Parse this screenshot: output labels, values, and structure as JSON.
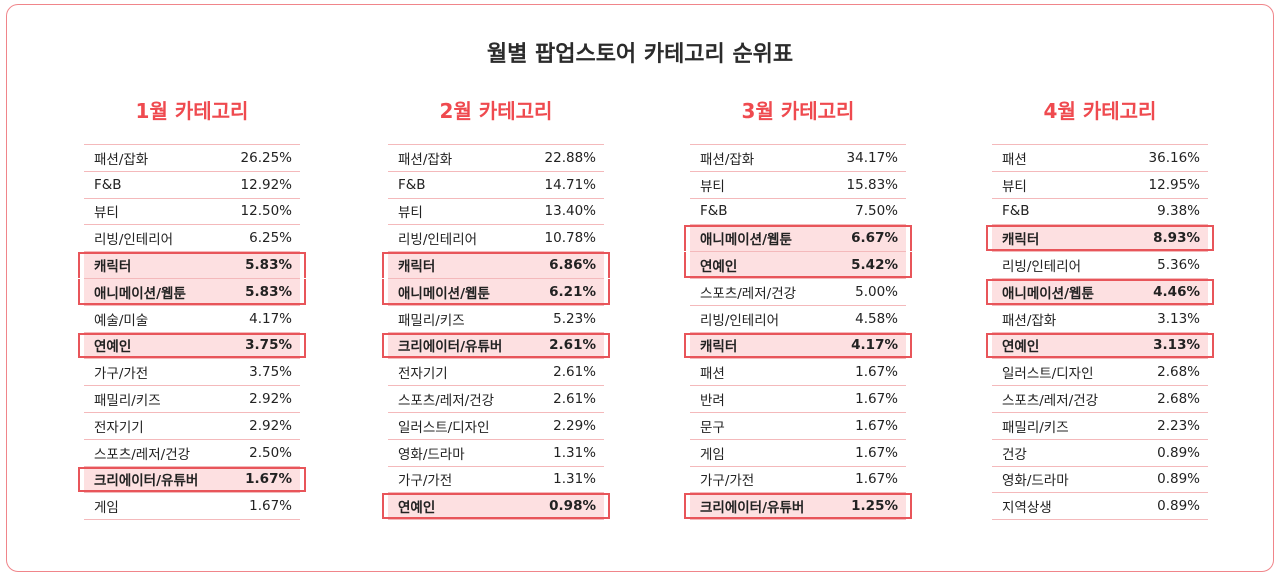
{
  "title": "월별 팝업스토어 카테고리 순위표",
  "columns": [
    {
      "title": "1월 카테고리",
      "rows": [
        {
          "name": "패션/잡화",
          "value": "26.25%",
          "hl": ""
        },
        {
          "name": "F&B",
          "value": "12.92%",
          "hl": ""
        },
        {
          "name": "뷰티",
          "value": "12.50%",
          "hl": ""
        },
        {
          "name": "리빙/인테리어",
          "value": "6.25%",
          "hl": ""
        },
        {
          "name": "캐릭터",
          "value": "5.83%",
          "hl": "first"
        },
        {
          "name": "애니메이션/웹툰",
          "value": "5.83%",
          "hl": "last"
        },
        {
          "name": "예술/미술",
          "value": "4.17%",
          "hl": ""
        },
        {
          "name": "연예인",
          "value": "3.75%",
          "hl": "single"
        },
        {
          "name": "가구/가전",
          "value": "3.75%",
          "hl": ""
        },
        {
          "name": "패밀리/키즈",
          "value": "2.92%",
          "hl": ""
        },
        {
          "name": "전자기기",
          "value": "2.92%",
          "hl": ""
        },
        {
          "name": "스포츠/레저/건강",
          "value": "2.50%",
          "hl": ""
        },
        {
          "name": "크리에이터/유튜버",
          "value": "1.67%",
          "hl": "single"
        },
        {
          "name": "게임",
          "value": "1.67%",
          "hl": ""
        }
      ]
    },
    {
      "title": "2월 카테고리",
      "rows": [
        {
          "name": "패션/잡화",
          "value": "22.88%",
          "hl": ""
        },
        {
          "name": "F&B",
          "value": "14.71%",
          "hl": ""
        },
        {
          "name": "뷰티",
          "value": "13.40%",
          "hl": ""
        },
        {
          "name": "리빙/인테리어",
          "value": "10.78%",
          "hl": ""
        },
        {
          "name": "캐릭터",
          "value": "6.86%",
          "hl": "first"
        },
        {
          "name": "애니메이션/웹툰",
          "value": "6.21%",
          "hl": "last"
        },
        {
          "name": "패밀리/키즈",
          "value": "5.23%",
          "hl": ""
        },
        {
          "name": "크리에이터/유튜버",
          "value": "2.61%",
          "hl": "single"
        },
        {
          "name": "전자기기",
          "value": "2.61%",
          "hl": ""
        },
        {
          "name": "스포츠/레저/건강",
          "value": "2.61%",
          "hl": ""
        },
        {
          "name": "일러스트/디자인",
          "value": "2.29%",
          "hl": ""
        },
        {
          "name": "영화/드라마",
          "value": "1.31%",
          "hl": ""
        },
        {
          "name": "가구/가전",
          "value": "1.31%",
          "hl": ""
        },
        {
          "name": "연예인",
          "value": "0.98%",
          "hl": "single"
        }
      ]
    },
    {
      "title": "3월 카테고리",
      "rows": [
        {
          "name": "패션/잡화",
          "value": "34.17%",
          "hl": ""
        },
        {
          "name": "뷰티",
          "value": "15.83%",
          "hl": ""
        },
        {
          "name": "F&B",
          "value": "7.50%",
          "hl": ""
        },
        {
          "name": "애니메이션/웹툰",
          "value": "6.67%",
          "hl": "first"
        },
        {
          "name": "연예인",
          "value": "5.42%",
          "hl": "last"
        },
        {
          "name": "스포츠/레저/건강",
          "value": "5.00%",
          "hl": ""
        },
        {
          "name": "리빙/인테리어",
          "value": "4.58%",
          "hl": ""
        },
        {
          "name": "캐릭터",
          "value": "4.17%",
          "hl": "single"
        },
        {
          "name": "패션",
          "value": "1.67%",
          "hl": ""
        },
        {
          "name": "반려",
          "value": "1.67%",
          "hl": ""
        },
        {
          "name": "문구",
          "value": "1.67%",
          "hl": ""
        },
        {
          "name": "게임",
          "value": "1.67%",
          "hl": ""
        },
        {
          "name": "가구/가전",
          "value": "1.67%",
          "hl": ""
        },
        {
          "name": "크리에이터/유튜버",
          "value": "1.25%",
          "hl": "single"
        }
      ]
    },
    {
      "title": "4월 카테고리",
      "rows": [
        {
          "name": "패션",
          "value": "36.16%",
          "hl": ""
        },
        {
          "name": "뷰티",
          "value": "12.95%",
          "hl": ""
        },
        {
          "name": "F&B",
          "value": "9.38%",
          "hl": ""
        },
        {
          "name": "캐릭터",
          "value": "8.93%",
          "hl": "single"
        },
        {
          "name": "리빙/인테리어",
          "value": "5.36%",
          "hl": ""
        },
        {
          "name": "애니메이션/웹툰",
          "value": "4.46%",
          "hl": "single"
        },
        {
          "name": "패션/잡화",
          "value": "3.13%",
          "hl": ""
        },
        {
          "name": "연예인",
          "value": "3.13%",
          "hl": "single"
        },
        {
          "name": "일러스트/디자인",
          "value": "2.68%",
          "hl": ""
        },
        {
          "name": "스포츠/레저/건강",
          "value": "2.68%",
          "hl": ""
        },
        {
          "name": "패밀리/키즈",
          "value": "2.23%",
          "hl": ""
        },
        {
          "name": "건강",
          "value": "0.89%",
          "hl": ""
        },
        {
          "name": "영화/드라마",
          "value": "0.89%",
          "hl": ""
        },
        {
          "name": "지역상생",
          "value": "0.89%",
          "hl": ""
        }
      ]
    }
  ],
  "colors": {
    "accent": "#ef4a4f",
    "highlight_fill": "#fde0e1",
    "highlight_border": "#e8555a",
    "row_divider": "#f4b9bb",
    "frame_border": "#f0858a"
  }
}
